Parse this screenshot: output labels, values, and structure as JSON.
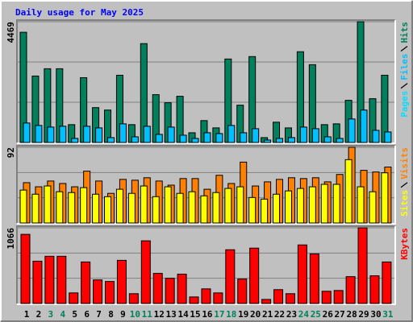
{
  "title": "Daily usage for May 2025",
  "chart_data": [
    {
      "type": "bar",
      "ylim": [
        0,
        4469
      ],
      "yticks": [
        4469
      ],
      "series": [
        {
          "name": "Hits",
          "color": "#00805c",
          "values": [
            4079,
            2459,
            2729,
            2729,
            660,
            2399,
            1290,
            1200,
            2489,
            660,
            3659,
            1770,
            1470,
            1710,
            360,
            810,
            540,
            3089,
            1380,
            3179,
            180,
            750,
            540,
            3359,
            2879,
            660,
            690,
            1560,
            4469,
            1620,
            2489
          ]
        },
        {
          "name": "Files",
          "color": "#00c0ff",
          "values": [
            720,
            630,
            570,
            600,
            150,
            600,
            540,
            180,
            690,
            210,
            600,
            300,
            570,
            270,
            150,
            360,
            330,
            630,
            360,
            510,
            90,
            150,
            180,
            570,
            510,
            210,
            150,
            870,
            1200,
            450,
            390
          ]
        },
        {
          "name": "Pages",
          "color": "#00e0ff",
          "values": [
            60,
            50,
            50,
            50,
            20,
            50,
            40,
            20,
            50,
            20,
            60,
            30,
            40,
            30,
            20,
            30,
            20,
            50,
            30,
            50,
            10,
            20,
            20,
            50,
            40,
            20,
            20,
            50,
            70,
            40,
            40
          ]
        }
      ]
    },
    {
      "type": "bar",
      "ylim": [
        0,
        92
      ],
      "yticks": [
        92
      ],
      "series": [
        {
          "name": "Visits",
          "color": "#ff8000",
          "values": [
            49,
            44,
            51,
            48,
            44,
            63,
            51,
            36,
            53,
            52,
            55,
            51,
            46,
            54,
            54,
            41,
            58,
            48,
            74,
            45,
            50,
            53,
            55,
            54,
            55,
            50,
            59,
            92,
            64,
            62,
            68
          ]
        },
        {
          "name": "Sites",
          "color": "#ffff00",
          "values": [
            40,
            35,
            45,
            38,
            37,
            43,
            35,
            32,
            41,
            36,
            45,
            32,
            44,
            36,
            38,
            33,
            37,
            42,
            44,
            31,
            29,
            35,
            39,
            42,
            44,
            47,
            47,
            77,
            44,
            38,
            61
          ]
        }
      ]
    },
    {
      "type": "bar",
      "ylim": [
        0,
        1066
      ],
      "yticks": [
        1066
      ],
      "categories": [
        "1",
        "2",
        "3",
        "4",
        "5",
        "6",
        "7",
        "8",
        "9",
        "10",
        "11",
        "12",
        "13",
        "14",
        "15",
        "16",
        "17",
        "18",
        "19",
        "20",
        "21",
        "22",
        "23",
        "24",
        "25",
        "26",
        "27",
        "28",
        "29",
        "30",
        "31"
      ],
      "category_colors": [
        "#000000",
        "#000000",
        "#00805c",
        "#00805c",
        "#000000",
        "#000000",
        "#000000",
        "#000000",
        "#000000",
        "#00805c",
        "#00805c",
        "#000000",
        "#000000",
        "#000000",
        "#000000",
        "#000000",
        "#00805c",
        "#00805c",
        "#000000",
        "#000000",
        "#000000",
        "#000000",
        "#000000",
        "#00805c",
        "#00805c",
        "#000000",
        "#000000",
        "#000000",
        "#000000",
        "#000000",
        "#00805c"
      ],
      "series": [
        {
          "name": "KBytes",
          "color": "#ff0000",
          "values": [
            974,
            596,
            665,
            665,
            149,
            585,
            332,
            310,
            608,
            138,
            883,
            424,
            355,
            413,
            92,
            206,
            149,
            757,
            344,
            780,
            57,
            195,
            138,
            825,
            699,
            172,
            183,
            378,
            1066,
            390,
            585
          ]
        }
      ]
    }
  ]
}
